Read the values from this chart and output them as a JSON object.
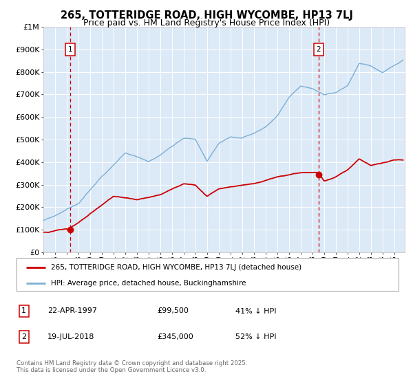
{
  "title": "265, TOTTERIDGE ROAD, HIGH WYCOMBE, HP13 7LJ",
  "subtitle": "Price paid vs. HM Land Registry's House Price Index (HPI)",
  "bg_color": "#dce9f7",
  "hpi_color": "#7bafd4",
  "price_color": "#cc0000",
  "vline_color": "#cc0000",
  "ylim": [
    0,
    1000000
  ],
  "yticks": [
    0,
    100000,
    200000,
    300000,
    400000,
    500000,
    600000,
    700000,
    800000,
    900000,
    1000000
  ],
  "ytick_labels": [
    "£0",
    "£100K",
    "£200K",
    "£300K",
    "£400K",
    "£500K",
    "£600K",
    "£700K",
    "£800K",
    "£900K",
    "£1M"
  ],
  "legend_label_1": "265, TOTTERIDGE ROAD, HIGH WYCOMBE, HP13 7LJ (detached house)",
  "legend_label_2": "HPI: Average price, detached house, Buckinghamshire",
  "footnote": "Contains HM Land Registry data © Crown copyright and database right 2025.\nThis data is licensed under the Open Government Licence v3.0.",
  "sale1_date": "22-APR-1997",
  "sale1_price": "£99,500",
  "sale1_hpi": "41% ↓ HPI",
  "sale1_x": 1997.31,
  "sale1_y": 99500,
  "sale2_date": "19-JUL-2018",
  "sale2_price": "£345,000",
  "sale2_hpi": "52% ↓ HPI",
  "sale2_x": 2018.54,
  "sale2_y": 345000,
  "xmin": 1995.0,
  "xmax": 2025.9,
  "xtick_years": [
    1995,
    1996,
    1997,
    1998,
    1999,
    2000,
    2001,
    2002,
    2003,
    2004,
    2005,
    2006,
    2007,
    2008,
    2009,
    2010,
    2011,
    2012,
    2013,
    2014,
    2015,
    2016,
    2017,
    2018,
    2019,
    2020,
    2021,
    2022,
    2023,
    2024,
    2025
  ]
}
